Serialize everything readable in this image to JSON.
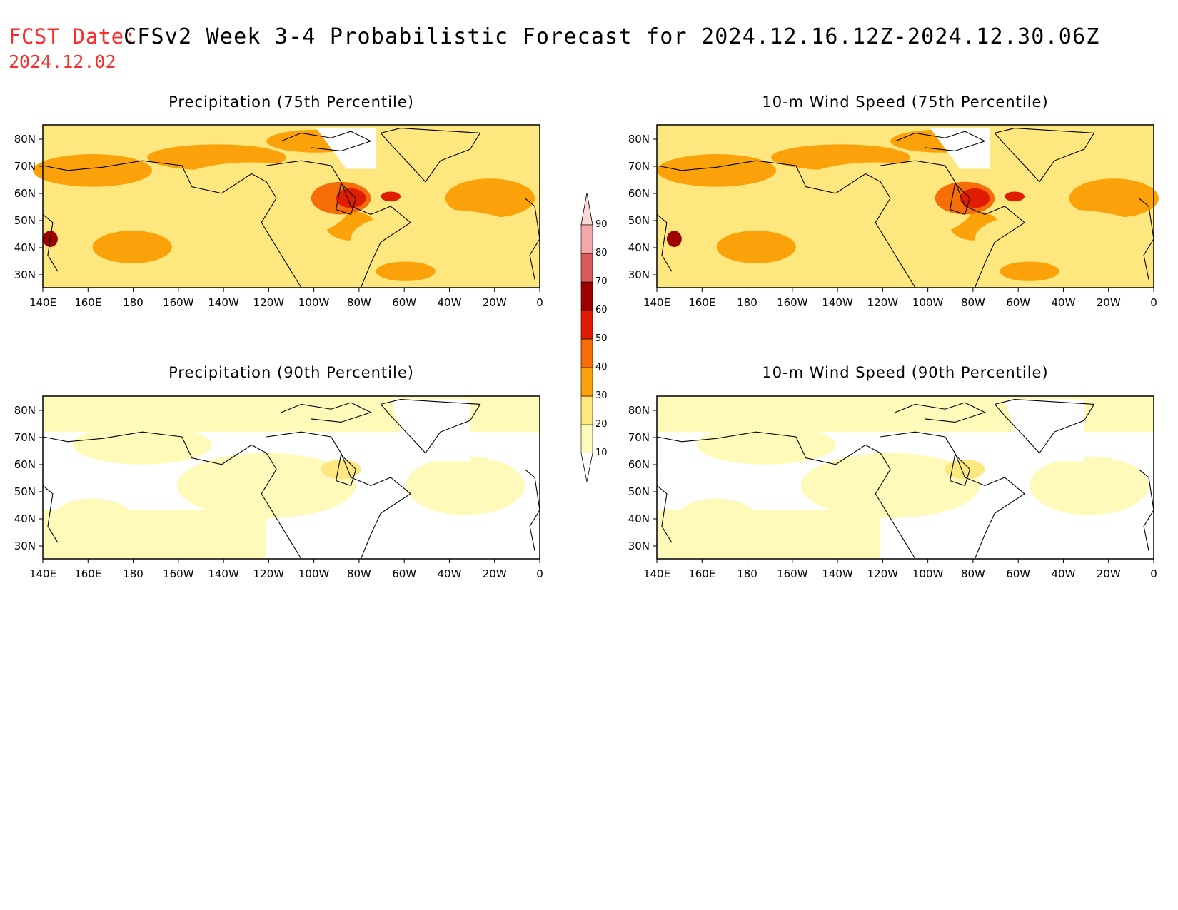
{
  "header": {
    "fcst_label": "FCST Date:",
    "title": "CFSv2 Week 3-4 Probabilistic Forecast for 2024.12.16.12Z-2024.12.30.06Z",
    "fcst_date": "2024.12.02"
  },
  "panels": [
    {
      "id": "precip-75",
      "title": "Precipitation (75th Percentile)"
    },
    {
      "id": "wind-75",
      "title": "10-m Wind Speed (75th Percentile)"
    },
    {
      "id": "precip-90",
      "title": "Precipitation (90th Percentile)"
    },
    {
      "id": "wind-90",
      "title": "10-m Wind Speed (90th Percentile)"
    }
  ],
  "axes": {
    "lon_labels": [
      "140E",
      "160E",
      "180",
      "160W",
      "140W",
      "120W",
      "100W",
      "80W",
      "60W",
      "40W",
      "20W",
      "0"
    ],
    "lat_labels": [
      "80N",
      "70N",
      "60N",
      "50N",
      "40N",
      "30N"
    ]
  },
  "colorbar": {
    "levels": [
      "10",
      "20",
      "30",
      "40",
      "50",
      "60",
      "70",
      "80",
      "90"
    ],
    "colors": [
      "#fffaba",
      "#fde77e",
      "#fba20a",
      "#f56e07",
      "#e01c02",
      "#9e0000",
      "#d65a5a",
      "#f2a9a9",
      "#fdd6d6"
    ]
  }
}
